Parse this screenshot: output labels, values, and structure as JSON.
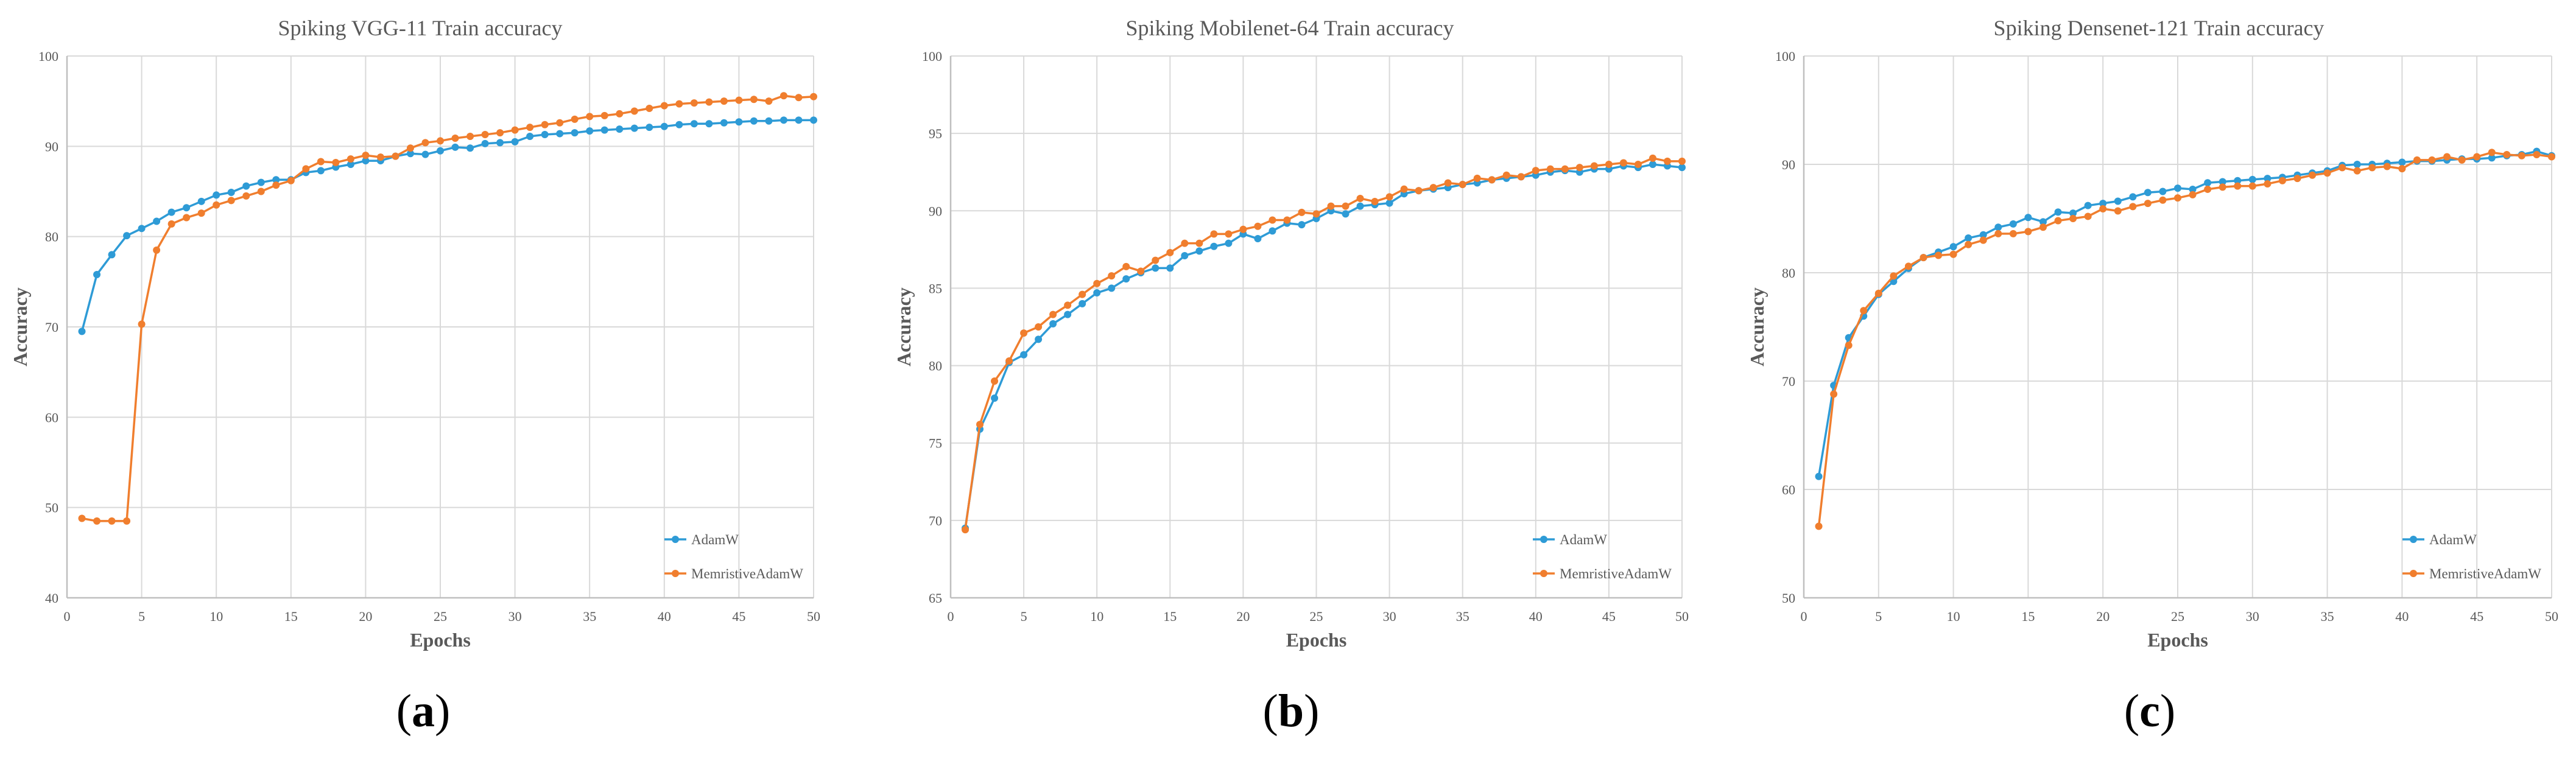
{
  "colors": {
    "adamw": "#2E9BD6",
    "memristive": "#F07E2E",
    "grid": "#d9d9d9",
    "axis": "#bfbfbf",
    "text": "#595959"
  },
  "panel_labels": [
    {
      "open": "(",
      "letter": "a",
      "close": ")"
    },
    {
      "open": "(",
      "letter": "b",
      "close": ")"
    },
    {
      "open": "(",
      "letter": "c",
      "close": ")"
    }
  ],
  "chart_data": [
    {
      "type": "line",
      "title": "Spiking VGG-11 Train accuracy",
      "xlabel": "Epochs",
      "ylabel": "Accuracy",
      "xlim": [
        0,
        50
      ],
      "ylim": [
        40,
        100
      ],
      "xticks": [
        0,
        5,
        10,
        15,
        20,
        25,
        30,
        35,
        40,
        45,
        50
      ],
      "yticks": [
        40,
        50,
        60,
        70,
        80,
        90,
        100
      ],
      "legend_position": "bottom-right",
      "grid": true,
      "x": [
        1,
        2,
        3,
        4,
        5,
        6,
        7,
        8,
        9,
        10,
        11,
        12,
        13,
        14,
        15,
        16,
        17,
        18,
        19,
        20,
        21,
        22,
        23,
        24,
        25,
        26,
        27,
        28,
        29,
        30,
        31,
        32,
        33,
        34,
        35,
        36,
        37,
        38,
        39,
        40,
        41,
        42,
        43,
        44,
        45,
        46,
        47,
        48,
        49,
        50
      ],
      "series": [
        {
          "name": "AdamW",
          "color": "#2E9BD6",
          "values": [
            69.5,
            75.8,
            78.0,
            80.1,
            80.9,
            81.7,
            82.7,
            83.2,
            83.9,
            84.6,
            84.9,
            85.6,
            86.0,
            86.3,
            86.3,
            87.1,
            87.3,
            87.7,
            88.0,
            88.4,
            88.4,
            88.9,
            89.2,
            89.1,
            89.5,
            89.9,
            89.8,
            90.3,
            90.4,
            90.5,
            91.1,
            91.3,
            91.4,
            91.5,
            91.7,
            91.8,
            91.9,
            92.0,
            92.1,
            92.2,
            92.4,
            92.5,
            92.5,
            92.6,
            92.7,
            92.8,
            92.8,
            92.9,
            92.9,
            92.9
          ]
        },
        {
          "name": "MemristiveAdamW",
          "color": "#F07E2E",
          "values": [
            48.8,
            48.5,
            48.5,
            48.5,
            70.3,
            78.5,
            81.4,
            82.1,
            82.6,
            83.5,
            84.0,
            84.5,
            85.0,
            85.7,
            86.2,
            87.5,
            88.3,
            88.2,
            88.6,
            89.0,
            88.8,
            88.9,
            89.8,
            90.4,
            90.6,
            90.9,
            91.1,
            91.3,
            91.5,
            91.8,
            92.1,
            92.4,
            92.6,
            93.0,
            93.3,
            93.4,
            93.6,
            93.9,
            94.2,
            94.5,
            94.7,
            94.8,
            94.9,
            95.0,
            95.1,
            95.2,
            95.0,
            95.6,
            95.4,
            95.5
          ]
        }
      ]
    },
    {
      "type": "line",
      "title": "Spiking Mobilenet-64 Train accuracy",
      "xlabel": "Epochs",
      "ylabel": "Accuracy",
      "xlim": [
        0,
        50
      ],
      "ylim": [
        65,
        100
      ],
      "xticks": [
        0,
        5,
        10,
        15,
        20,
        25,
        30,
        35,
        40,
        45,
        50
      ],
      "yticks": [
        65,
        70,
        75,
        80,
        85,
        90,
        95,
        100
      ],
      "legend_position": "bottom-right",
      "grid": true,
      "x": [
        1,
        2,
        3,
        4,
        5,
        6,
        7,
        8,
        9,
        10,
        11,
        12,
        13,
        14,
        15,
        16,
        17,
        18,
        19,
        20,
        21,
        22,
        23,
        24,
        25,
        26,
        27,
        28,
        29,
        30,
        31,
        32,
        33,
        34,
        35,
        36,
        37,
        38,
        39,
        40,
        41,
        42,
        43,
        44,
        45,
        46,
        47,
        48,
        49,
        50
      ],
      "series": [
        {
          "name": "AdamW",
          "color": "#2E9BD6",
          "values": [
            69.5,
            75.9,
            77.9,
            80.2,
            80.7,
            81.7,
            82.7,
            83.3,
            84.0,
            84.7,
            85.0,
            85.6,
            86.0,
            86.3,
            86.3,
            87.1,
            87.4,
            87.7,
            87.9,
            88.5,
            88.2,
            88.7,
            89.2,
            89.1,
            89.5,
            90.0,
            89.8,
            90.3,
            90.4,
            90.5,
            91.1,
            91.3,
            91.4,
            91.5,
            91.7,
            91.8,
            92.0,
            92.1,
            92.2,
            92.3,
            92.5,
            92.6,
            92.5,
            92.7,
            92.7,
            92.9,
            92.8,
            93.0,
            92.9,
            92.8
          ]
        },
        {
          "name": "MemristiveAdamW",
          "color": "#F07E2E",
          "values": [
            69.4,
            76.2,
            79.0,
            80.3,
            82.1,
            82.5,
            83.3,
            83.9,
            84.6,
            85.3,
            85.8,
            86.4,
            86.1,
            86.8,
            87.3,
            87.9,
            87.9,
            88.5,
            88.5,
            88.8,
            89.0,
            89.4,
            89.4,
            89.9,
            89.8,
            90.3,
            90.3,
            90.8,
            90.6,
            90.9,
            91.4,
            91.3,
            91.5,
            91.8,
            91.7,
            92.1,
            92.0,
            92.3,
            92.2,
            92.6,
            92.7,
            92.7,
            92.8,
            92.9,
            93.0,
            93.1,
            93.0,
            93.4,
            93.2,
            93.2
          ]
        }
      ]
    },
    {
      "type": "line",
      "title": "Spiking Densenet-121 Train accuracy",
      "xlabel": "Epochs",
      "ylabel": "Accuracy",
      "xlim": [
        0,
        50
      ],
      "ylim": [
        50,
        100
      ],
      "xticks": [
        0,
        5,
        10,
        15,
        20,
        25,
        30,
        35,
        40,
        45,
        50
      ],
      "yticks": [
        50,
        60,
        70,
        80,
        90,
        100
      ],
      "legend_position": "bottom-right",
      "grid": true,
      "x": [
        1,
        2,
        3,
        4,
        5,
        6,
        7,
        8,
        9,
        10,
        11,
        12,
        13,
        14,
        15,
        16,
        17,
        18,
        19,
        20,
        21,
        22,
        23,
        24,
        25,
        26,
        27,
        28,
        29,
        30,
        31,
        32,
        33,
        34,
        35,
        36,
        37,
        38,
        39,
        40,
        41,
        42,
        43,
        44,
        45,
        46,
        47,
        48,
        49,
        50
      ],
      "series": [
        {
          "name": "AdamW",
          "color": "#2E9BD6",
          "values": [
            61.2,
            69.6,
            74.0,
            76.0,
            78.0,
            79.2,
            80.4,
            81.4,
            81.9,
            82.4,
            83.2,
            83.5,
            84.2,
            84.5,
            85.1,
            84.7,
            85.6,
            85.5,
            86.2,
            86.4,
            86.6,
            87.0,
            87.4,
            87.5,
            87.8,
            87.7,
            88.3,
            88.4,
            88.5,
            88.6,
            88.7,
            88.8,
            89.0,
            89.2,
            89.4,
            89.9,
            90.0,
            90.0,
            90.1,
            90.2,
            90.3,
            90.3,
            90.4,
            90.5,
            90.5,
            90.6,
            90.8,
            90.9,
            91.2,
            90.8
          ]
        },
        {
          "name": "MemristiveAdamW",
          "color": "#F07E2E",
          "values": [
            56.6,
            68.8,
            73.3,
            76.5,
            78.1,
            79.7,
            80.6,
            81.4,
            81.6,
            81.7,
            82.6,
            83.0,
            83.6,
            83.6,
            83.8,
            84.2,
            84.8,
            85.0,
            85.2,
            85.9,
            85.7,
            86.1,
            86.4,
            86.7,
            86.9,
            87.2,
            87.7,
            87.9,
            88.0,
            88.0,
            88.2,
            88.5,
            88.7,
            89.0,
            89.2,
            89.7,
            89.4,
            89.7,
            89.8,
            89.6,
            90.4,
            90.4,
            90.7,
            90.4,
            90.7,
            91.1,
            90.9,
            90.8,
            90.9,
            90.7
          ]
        }
      ]
    }
  ]
}
